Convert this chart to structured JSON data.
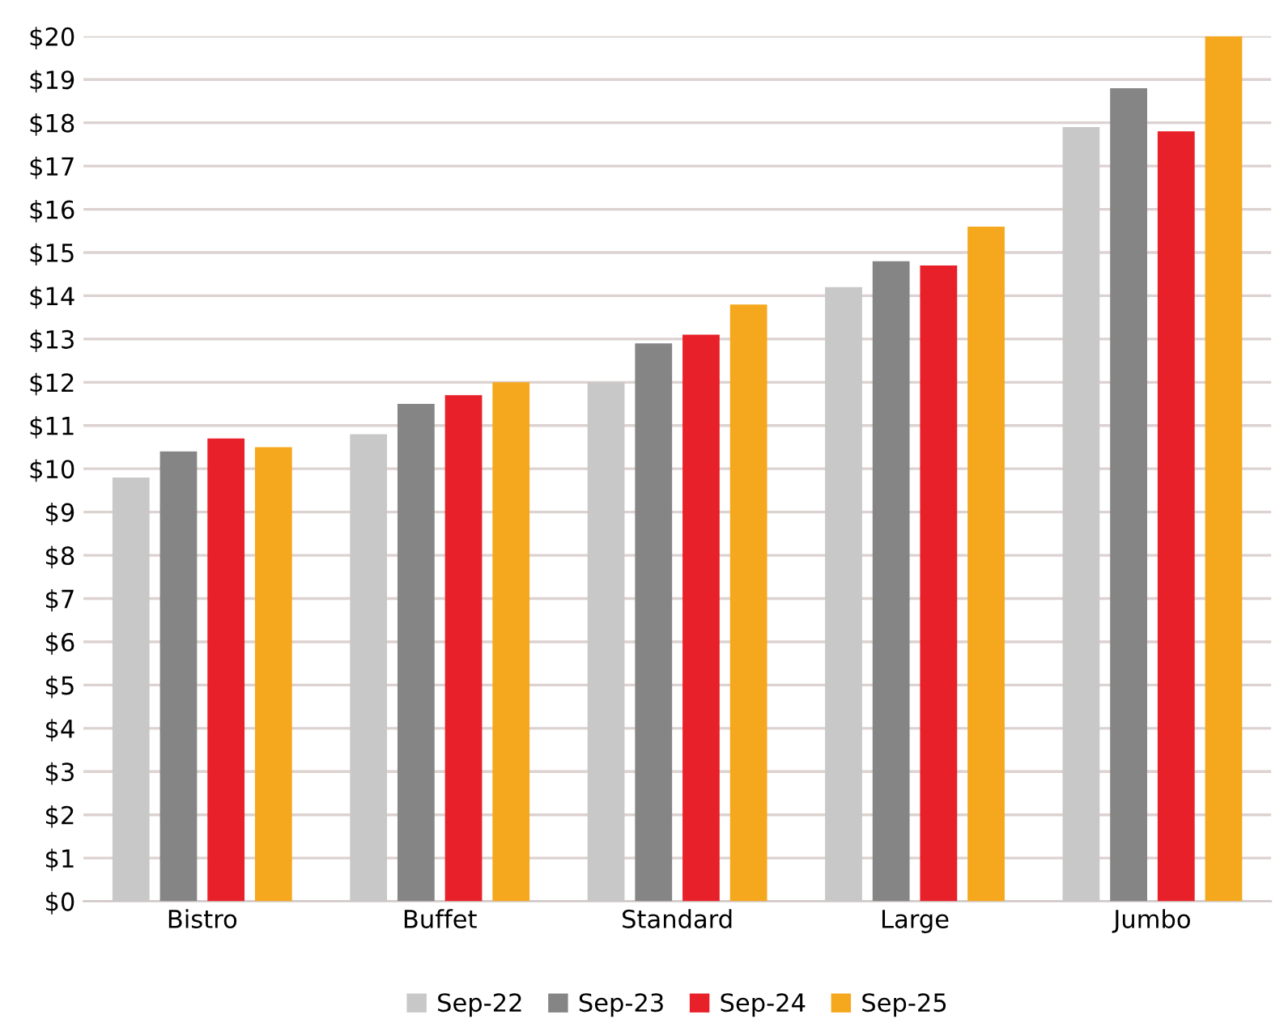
{
  "chart_data": {
    "type": "bar",
    "categories": [
      "Bistro",
      "Buffet",
      "Standard",
      "Large",
      "Jumbo"
    ],
    "series": [
      {
        "name": "Sep-22",
        "color": "#c8c8c8",
        "values": [
          9.8,
          10.8,
          12.0,
          14.2,
          17.9
        ]
      },
      {
        "name": "Sep-23",
        "color": "#858585",
        "values": [
          10.4,
          11.5,
          12.9,
          14.8,
          18.8
        ]
      },
      {
        "name": "Sep-24",
        "color": "#e8202a",
        "values": [
          10.7,
          11.7,
          13.1,
          14.7,
          17.8
        ]
      },
      {
        "name": "Sep-25",
        "color": "#f5a81d",
        "values": [
          10.5,
          12.0,
          13.8,
          15.6,
          20.0
        ]
      }
    ],
    "ylim": [
      0,
      20
    ],
    "yticks": [
      {
        "value": 0,
        "label": "$0"
      },
      {
        "value": 1,
        "label": "$1"
      },
      {
        "value": 2,
        "label": "$2"
      },
      {
        "value": 3,
        "label": "$3"
      },
      {
        "value": 4,
        "label": "$4"
      },
      {
        "value": 5,
        "label": "$5"
      },
      {
        "value": 6,
        "label": "$6"
      },
      {
        "value": 7,
        "label": "$7"
      },
      {
        "value": 8,
        "label": "$8"
      },
      {
        "value": 9,
        "label": "$9"
      },
      {
        "value": 10,
        "label": "$10"
      },
      {
        "value": 11,
        "label": "$11"
      },
      {
        "value": 12,
        "label": "$12"
      },
      {
        "value": 13,
        "label": "$13"
      },
      {
        "value": 14,
        "label": "$14"
      },
      {
        "value": 15,
        "label": "$15"
      },
      {
        "value": 16,
        "label": "$16"
      },
      {
        "value": 17,
        "label": "$17"
      },
      {
        "value": 18,
        "label": "$18"
      },
      {
        "value": 19,
        "label": "$19"
      },
      {
        "value": 20,
        "label": "$20"
      }
    ],
    "grid": "y",
    "legend": "bottom"
  }
}
